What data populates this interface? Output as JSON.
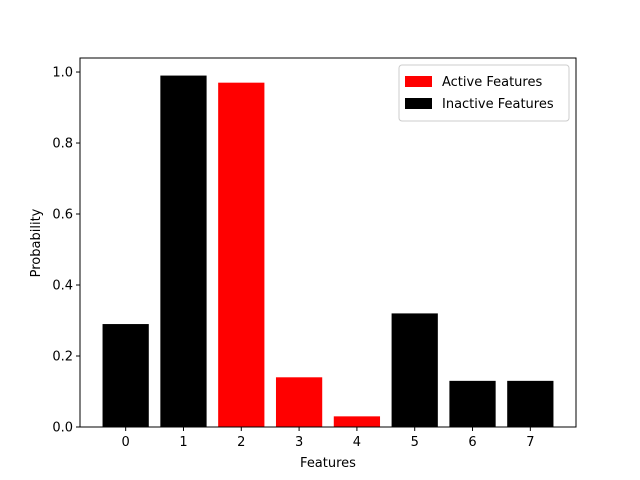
{
  "chart_data": {
    "type": "bar",
    "xlabel": "Features",
    "ylabel": "Probability",
    "x": [
      0,
      1,
      2,
      3,
      4,
      5,
      6,
      7
    ],
    "series": [
      {
        "name": "Active Features",
        "color": "#ff0000",
        "values": [
          null,
          null,
          0.97,
          0.14,
          0.03,
          null,
          null,
          null
        ]
      },
      {
        "name": "Inactive Features",
        "color": "#000000",
        "values": [
          0.29,
          0.99,
          null,
          null,
          null,
          0.32,
          0.13,
          0.13
        ]
      }
    ],
    "xlim": [
      -0.79,
      7.79
    ],
    "xticks": [
      0,
      1,
      2,
      3,
      4,
      5,
      6,
      7
    ],
    "ylim": [
      0,
      1.0395
    ],
    "yticks": [
      {
        "value": 0,
        "label": "0.0"
      },
      {
        "value": 0.2,
        "label": "0.2"
      },
      {
        "value": 0.4,
        "label": "0.4"
      },
      {
        "value": 0.6,
        "label": "0.6"
      },
      {
        "value": 0.8,
        "label": "0.8"
      },
      {
        "value": 1,
        "label": "1.0"
      }
    ],
    "legend": "upper right",
    "grid": false
  }
}
